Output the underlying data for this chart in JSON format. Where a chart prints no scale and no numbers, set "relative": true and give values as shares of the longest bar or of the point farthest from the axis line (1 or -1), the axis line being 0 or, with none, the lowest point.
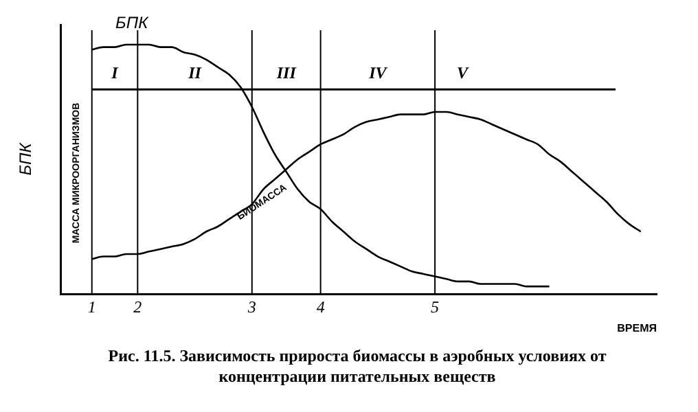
{
  "chart_data": {
    "type": "line",
    "relative": true,
    "title": "Рис. 11.5. Зависимость прироста биомассы в аэробных условиях от концентрации питательных веществ",
    "xlabel": "ВРЕМЯ",
    "ylabel": "БПК",
    "categories": [
      "1",
      null,
      null,
      null,
      "2",
      null,
      null,
      null,
      null,
      null,
      null,
      null,
      null,
      null,
      "3",
      null,
      null,
      null,
      null,
      null,
      "4",
      null,
      null,
      null,
      null,
      null,
      null,
      null,
      null,
      null,
      "5",
      null,
      null,
      null,
      null,
      null,
      null,
      null,
      null,
      null,
      null,
      null,
      null,
      null,
      null,
      null,
      null,
      null,
      null
    ],
    "series": [
      {
        "name": "БПК",
        "color": "#000000",
        "values": [
          0.98,
          0.99,
          0.99,
          1,
          1,
          1,
          0.99,
          0.99,
          0.97,
          0.96,
          0.94,
          0.91,
          0.88,
          0.83,
          0.75,
          0.65,
          0.56,
          0.49,
          0.42,
          0.37,
          0.34,
          0.29,
          0.25,
          0.21,
          0.18,
          0.15,
          0.13,
          0.11,
          0.09,
          0.08,
          0.07,
          0.06,
          0.05,
          0.05,
          0.04,
          0.04,
          0.04,
          0.04,
          0.03,
          0.03,
          0.03,
          null,
          null,
          null,
          null,
          null,
          null,
          null,
          null
        ]
      },
      {
        "name": "БИОМАССА",
        "color": "#000000",
        "values": [
          0.14,
          0.15,
          0.15,
          0.16,
          0.16,
          0.17,
          0.18,
          0.19,
          0.2,
          0.22,
          0.25,
          0.27,
          0.3,
          0.33,
          0.36,
          0.42,
          0.46,
          0.5,
          0.54,
          0.57,
          0.6,
          0.62,
          0.64,
          0.67,
          0.69,
          0.7,
          0.71,
          0.72,
          0.72,
          0.72,
          0.73,
          0.73,
          0.72,
          0.71,
          0.7,
          0.68,
          0.66,
          0.64,
          0.62,
          0.6,
          0.56,
          0.53,
          0.49,
          0.45,
          0.41,
          0.37,
          0.32,
          0.28,
          0.25
        ]
      }
    ],
    "ref_lines": [
      {
        "axis": "x",
        "value": "1"
      },
      {
        "axis": "x",
        "value": "2"
      },
      {
        "axis": "x",
        "value": "3"
      },
      {
        "axis": "x",
        "value": "4"
      },
      {
        "axis": "x",
        "value": "5"
      },
      {
        "axis": "y",
        "value": 0.82
      }
    ],
    "annotations": [
      "МАССА МИКРООРГАНИЗМОВ",
      "I",
      "II",
      "III",
      "IV",
      "V"
    ],
    "grid": false,
    "legend": false,
    "marker": "none",
    "line_style": "solid"
  }
}
